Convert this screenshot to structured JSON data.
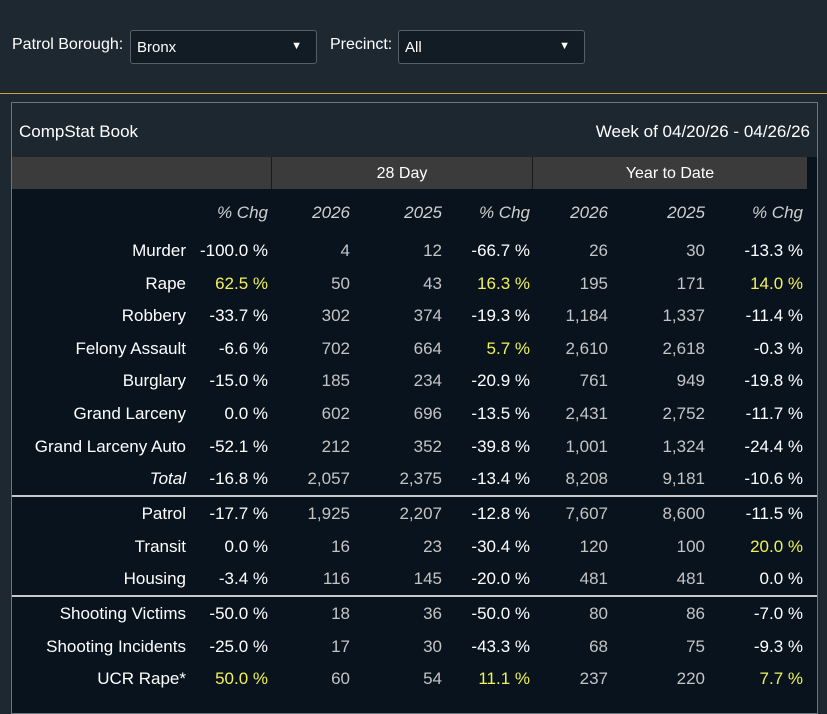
{
  "filters": [
    {
      "label": "Patrol Borough:",
      "value": "Bronx"
    },
    {
      "label": "Precinct:",
      "value": "All"
    }
  ],
  "panel": {
    "title": "CompStat Book",
    "week": "Week of 04/20/26 - 04/26/26"
  },
  "table": {
    "groups": [
      "28 Day",
      "Year to Date"
    ],
    "columns": [
      "% Chg",
      "2026",
      "2025",
      "% Chg",
      "2026",
      "2025",
      "% Chg"
    ],
    "highlight_color": "#f3f15a",
    "sections": [
      [
        [
          "Murder",
          "-100.0 %",
          "4",
          "12",
          "-66.7 %",
          "26",
          "30",
          "-13.3 %"
        ],
        [
          "Rape",
          "62.5 %",
          "50",
          "43",
          "16.3 %",
          "195",
          "171",
          "14.0 %"
        ],
        [
          "Robbery",
          "-33.7 %",
          "302",
          "374",
          "-19.3 %",
          "1,184",
          "1,337",
          "-11.4 %"
        ],
        [
          "Felony Assault",
          "-6.6 %",
          "702",
          "664",
          "5.7 %",
          "2,610",
          "2,618",
          "-0.3 %"
        ],
        [
          "Burglary",
          "-15.0 %",
          "185",
          "234",
          "-20.9 %",
          "761",
          "949",
          "-19.8 %"
        ],
        [
          "Grand Larceny",
          "0.0 %",
          "602",
          "696",
          "-13.5 %",
          "2,431",
          "2,752",
          "-11.7 %"
        ],
        [
          "Grand Larceny Auto",
          "-52.1 %",
          "212",
          "352",
          "-39.8 %",
          "1,001",
          "1,324",
          "-24.4 %"
        ],
        [
          "Total",
          "-16.8 %",
          "2,057",
          "2,375",
          "-13.4 %",
          "8,208",
          "9,181",
          "-10.6 %"
        ]
      ],
      [
        [
          "Patrol",
          "-17.7 %",
          "1,925",
          "2,207",
          "-12.8 %",
          "7,607",
          "8,600",
          "-11.5 %"
        ],
        [
          "Transit",
          "0.0 %",
          "16",
          "23",
          "-30.4 %",
          "120",
          "100",
          "20.0 %"
        ],
        [
          "Housing",
          "-3.4 %",
          "116",
          "145",
          "-20.0 %",
          "481",
          "481",
          "0.0 %"
        ]
      ],
      [
        [
          "Shooting Victims",
          "-50.0 %",
          "18",
          "36",
          "-50.0 %",
          "80",
          "86",
          "-7.0 %"
        ],
        [
          "Shooting Incidents",
          "-25.0 %",
          "17",
          "30",
          "-43.3 %",
          "68",
          "75",
          "-9.3 %"
        ],
        [
          "UCR Rape*",
          "50.0 %",
          "60",
          "54",
          "11.1 %",
          "237",
          "220",
          "7.7 %"
        ]
      ]
    ]
  }
}
